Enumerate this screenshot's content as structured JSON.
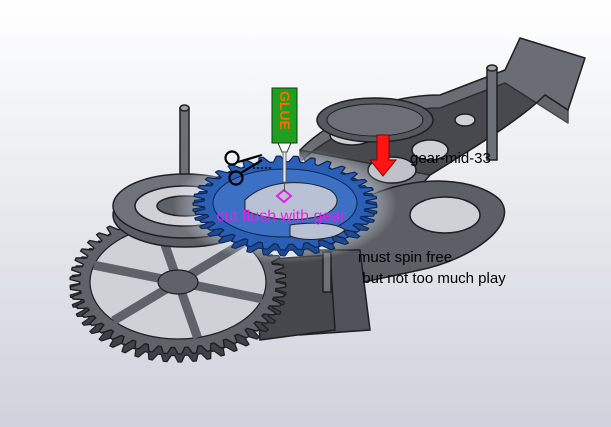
{
  "annotations": {
    "glue_label": "GLUE",
    "gear_label": "gear-mid-33",
    "cut_label": "cut flush with gear",
    "spin_line1": "must spin free",
    "spin_line2": "but not too much play"
  },
  "icons": {
    "scissors": "scissors-icon",
    "glue_tube": "glue-tube-icon",
    "arrow": "arrow-down-icon"
  },
  "colors": {
    "background_top": "#ffffff",
    "background_bottom": "#cfd2dc",
    "part_gray": "#5f6268",
    "part_dark": "#3a3c41",
    "edge": "#1e1f22",
    "highlight_gear": "#2a5fb5",
    "glow": "#8fb6f2",
    "glue_green": "#1f9e1f",
    "glue_text": "#ff6a00",
    "cut_text": "#e61ee6",
    "arrow_red": "#ff1414",
    "label_text": "#000000"
  }
}
